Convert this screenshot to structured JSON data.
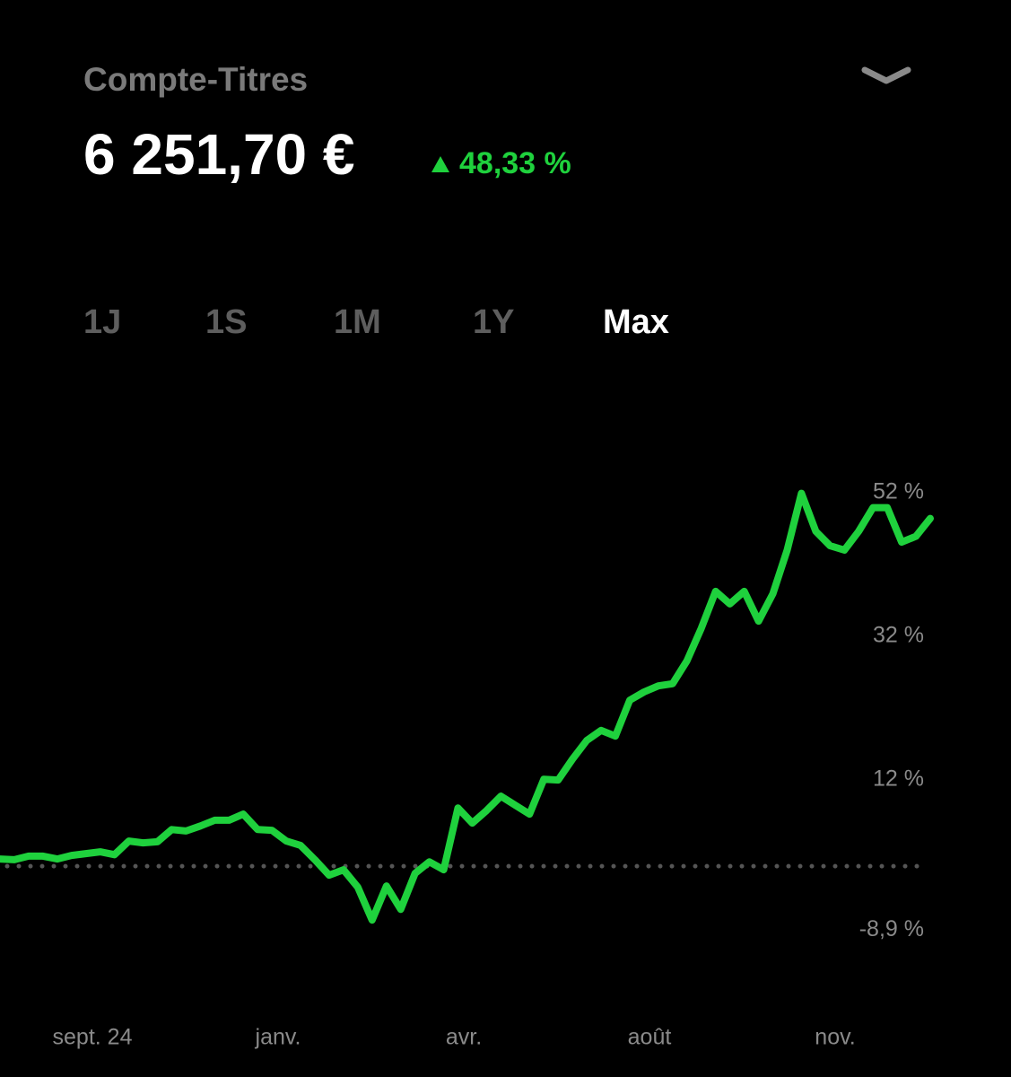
{
  "header": {
    "account": "Compte-Titres",
    "balance": "6 251,70 €",
    "change": "48,33 %"
  },
  "tabs": [
    "1J",
    "1S",
    "1M",
    "1Y",
    "Max"
  ],
  "selected_tab": 4,
  "chart_data": {
    "type": "line",
    "color": "#1fd13d",
    "values": [
      1.0,
      0.9,
      1.4,
      1.4,
      1.0,
      1.5,
      1.75,
      2.0,
      1.6,
      3.5,
      3.25,
      3.4,
      5.1,
      4.9,
      5.6,
      6.4,
      6.4,
      7.25,
      5.1,
      5.0,
      3.5,
      2.9,
      0.9,
      -1.25,
      -0.5,
      -2.9,
      -7.5,
      -2.75,
      -6.0,
      -1.0,
      0.6,
      -0.5,
      8.1,
      6.0,
      7.75,
      9.75,
      8.5,
      7.25,
      12.1,
      12.0,
      14.9,
      17.5,
      18.9,
      18.1,
      23.1,
      24.25,
      25.1,
      25.4,
      28.6,
      33.1,
      38.25,
      36.5,
      38.25,
      34.1,
      37.9,
      44.0,
      51.9,
      46.6,
      44.6,
      44.0,
      46.6,
      49.9,
      49.9,
      45.1,
      45.9,
      48.4
    ],
    "ylim": [
      -10.6,
      53.1
    ],
    "yticks": [
      {
        "value": 52,
        "label": "52 %"
      },
      {
        "value": 32,
        "label": "32 %"
      },
      {
        "value": 12,
        "label": "12 %"
      },
      {
        "value": -8.9,
        "label": "-8,9 %"
      }
    ],
    "reference_line": 0,
    "xlabels": [
      "sept. 24",
      "janv.",
      "avr.",
      "août",
      "nov."
    ]
  }
}
